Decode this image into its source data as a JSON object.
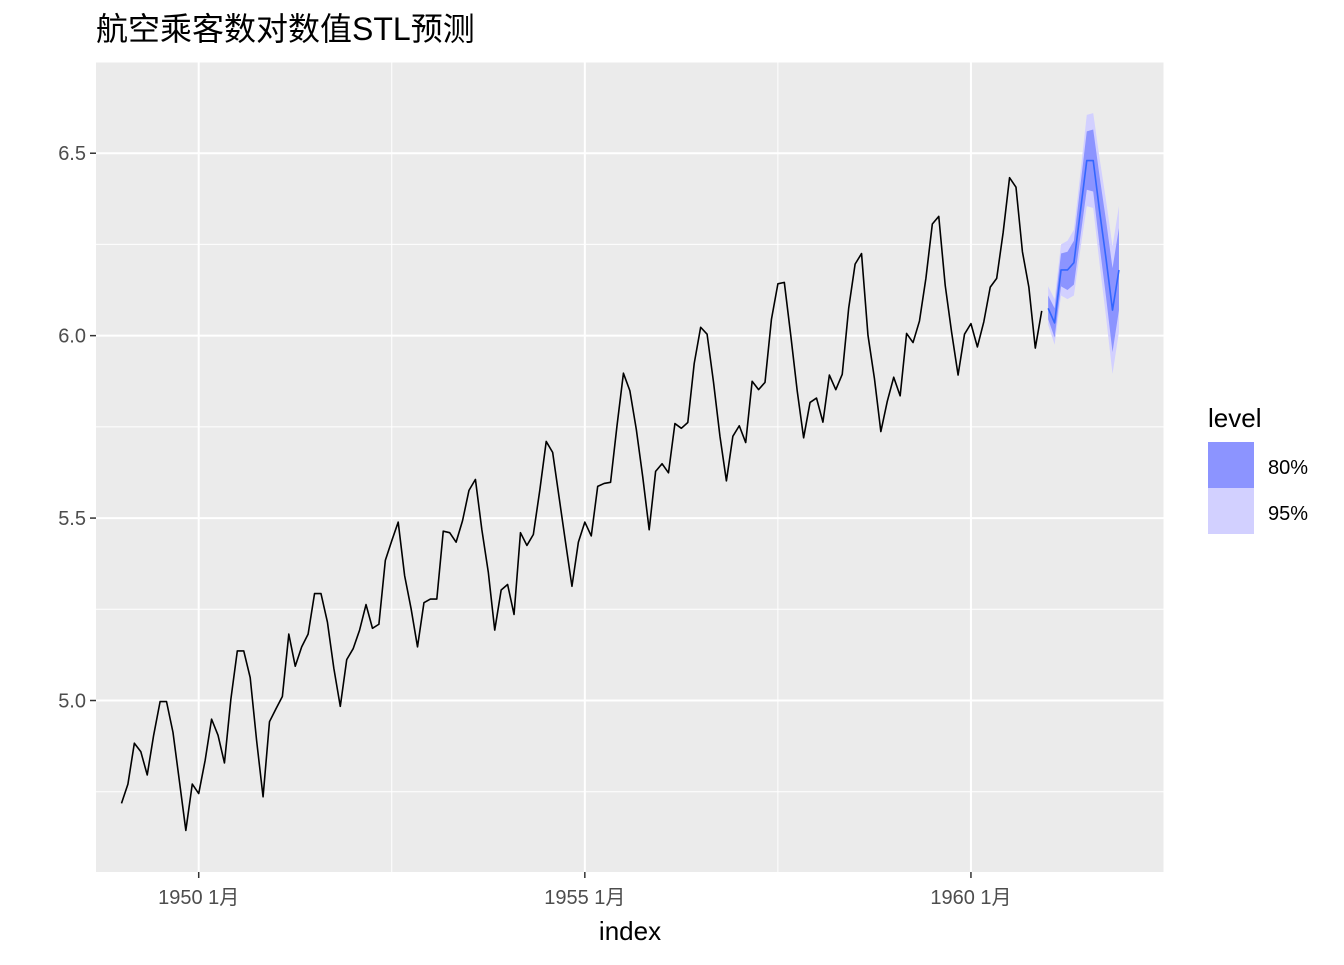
{
  "chart_data": {
    "type": "line",
    "title": "航空乘客数对数值STL预测",
    "xlabel": "index",
    "ylabel": "",
    "xlim": [
      1948.67,
      1962.5
    ],
    "ylim": [
      4.53,
      6.75
    ],
    "grid": true,
    "x_ticks": [
      {
        "value": 1950,
        "label": "1950 1月"
      },
      {
        "value": 1955,
        "label": "1955 1月"
      },
      {
        "value": 1960,
        "label": "1960 1月"
      }
    ],
    "y_ticks": [
      {
        "value": 5.0,
        "label": "5.0"
      },
      {
        "value": 5.5,
        "label": "5.5"
      },
      {
        "value": 6.0,
        "label": "6.0"
      },
      {
        "value": 6.5,
        "label": "6.5"
      }
    ],
    "series": [
      {
        "x_start": 1949.0,
        "step": 0.08333333,
        "color": "#000000",
        "values": [
          4.718,
          4.771,
          4.883,
          4.86,
          4.796,
          4.905,
          4.997,
          4.997,
          4.913,
          4.779,
          4.644,
          4.771,
          4.745,
          4.836,
          4.949,
          4.905,
          4.829,
          5.004,
          5.136,
          5.136,
          5.063,
          4.89,
          4.736,
          4.942,
          4.977,
          5.011,
          5.182,
          5.094,
          5.147,
          5.182,
          5.293,
          5.293,
          5.215,
          5.088,
          4.984,
          5.112,
          5.142,
          5.193,
          5.263,
          5.198,
          5.209,
          5.384,
          5.438,
          5.489,
          5.342,
          5.252,
          5.147,
          5.268,
          5.278,
          5.278,
          5.464,
          5.46,
          5.434,
          5.493,
          5.576,
          5.606,
          5.468,
          5.352,
          5.193,
          5.303,
          5.318,
          5.236,
          5.46,
          5.425,
          5.455,
          5.576,
          5.71,
          5.68,
          5.557,
          5.434,
          5.313,
          5.434,
          5.489,
          5.451,
          5.587,
          5.595,
          5.598,
          5.753,
          5.897,
          5.849,
          5.743,
          5.613,
          5.468,
          5.628,
          5.649,
          5.624,
          5.759,
          5.746,
          5.762,
          5.924,
          6.023,
          6.004,
          5.872,
          5.724,
          5.602,
          5.724,
          5.753,
          5.707,
          5.875,
          5.852,
          5.872,
          6.045,
          6.142,
          6.146,
          6.001,
          5.849,
          5.72,
          5.817,
          5.829,
          5.763,
          5.892,
          5.852,
          5.894,
          6.075,
          6.196,
          6.225,
          6.001,
          5.883,
          5.737,
          5.82,
          5.886,
          5.835,
          6.006,
          5.981,
          6.04,
          6.157,
          6.306,
          6.327,
          6.138,
          6.009,
          5.892,
          6.004,
          6.033,
          5.969,
          6.038,
          6.133,
          6.157,
          6.282,
          6.433,
          6.407,
          6.23,
          6.133,
          5.966,
          6.068
        ]
      }
    ],
    "forecast": {
      "x_start": 1961.0,
      "step": 0.08333333,
      "color": "#3366FF",
      "mean": [
        6.075,
        6.035,
        6.18,
        6.18,
        6.2,
        6.34,
        6.48,
        6.48,
        6.34,
        6.21,
        6.07,
        6.18
      ],
      "lo80": [
        6.045,
        5.995,
        6.135,
        6.125,
        6.14,
        6.27,
        6.4,
        6.395,
        6.245,
        6.105,
        5.955,
        6.07
      ],
      "hi80": [
        6.11,
        6.075,
        6.225,
        6.23,
        6.26,
        6.41,
        6.56,
        6.565,
        6.435,
        6.315,
        6.185,
        6.295
      ],
      "lo95": [
        6.03,
        5.975,
        6.11,
        6.1,
        6.11,
        6.235,
        6.355,
        6.35,
        6.195,
        6.05,
        5.895,
        6.01
      ],
      "hi95": [
        6.135,
        6.1,
        6.25,
        6.26,
        6.29,
        6.445,
        6.605,
        6.61,
        6.485,
        6.37,
        6.245,
        6.355
      ]
    },
    "legend": {
      "title": "level",
      "position": "right",
      "items": [
        {
          "label": "80%",
          "color": "#8c94ff"
        },
        {
          "label": "95%",
          "color": "#d2d0ff"
        }
      ]
    }
  }
}
